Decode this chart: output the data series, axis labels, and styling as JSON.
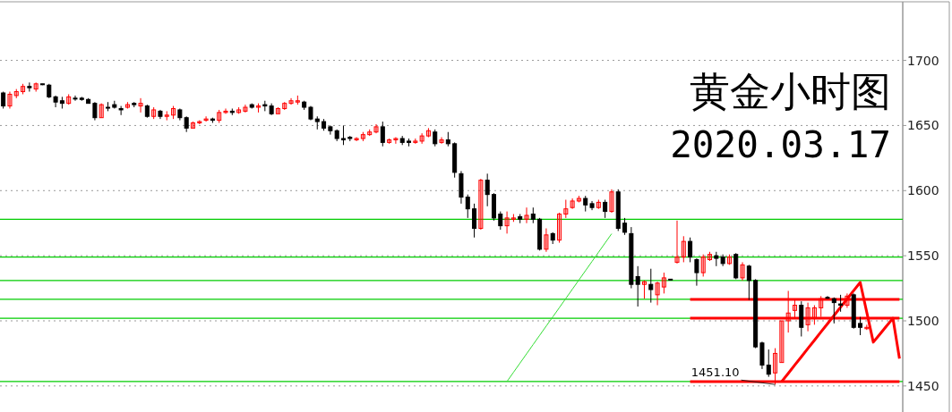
{
  "chart_data": {
    "type": "candlestick",
    "title": "黄金小时图",
    "subtitle": "2020.03.17",
    "categories": [
      null,
      null,
      null,
      null,
      null,
      null,
      null,
      null,
      null,
      null,
      null,
      null,
      null,
      null,
      null,
      null,
      null,
      null,
      null,
      null,
      null,
      null,
      null,
      null,
      null,
      null,
      null,
      null,
      null,
      null,
      null,
      null,
      null,
      null,
      null,
      null,
      null,
      null,
      null,
      null,
      null,
      null,
      null,
      null,
      null,
      null,
      null,
      null,
      null,
      null,
      null,
      null,
      null,
      null,
      null,
      null,
      null,
      null,
      null,
      null,
      null,
      null,
      null,
      null,
      null,
      null,
      null,
      null,
      null,
      null,
      null,
      null,
      null,
      null,
      null,
      null,
      null,
      null,
      null,
      null,
      null,
      null,
      null,
      null,
      null,
      null,
      null,
      null,
      null,
      null,
      null,
      null,
      null,
      null,
      null,
      null,
      null,
      null,
      null,
      null,
      null,
      null,
      null,
      null,
      null,
      null,
      null,
      null,
      null,
      null,
      null,
      null,
      null,
      null,
      null,
      null,
      null,
      null,
      null,
      null,
      null,
      null,
      null,
      null,
      null,
      null,
      null,
      null,
      null,
      null,
      null,
      null,
      null,
      null,
      null,
      null,
      null,
      null
    ],
    "ohlc": [
      [
        1675,
        1676,
        1663,
        1665
      ],
      [
        1665,
        1676,
        1663,
        1674
      ],
      [
        1673,
        1678,
        1671,
        1676
      ],
      [
        1676,
        1682,
        1674,
        1680
      ],
      [
        1680,
        1683,
        1676,
        1679
      ],
      [
        1678,
        1683,
        1676,
        1682
      ],
      [
        1682,
        1682,
        1681,
        1682
      ],
      [
        1681,
        1682,
        1671,
        1672
      ],
      [
        1672,
        1673,
        1664,
        1668
      ],
      [
        1669,
        1672,
        1663,
        1667
      ],
      [
        1667,
        1674,
        1666,
        1672
      ],
      [
        1671,
        1673,
        1669,
        1671
      ],
      [
        1671,
        1672,
        1669,
        1670
      ],
      [
        1670,
        1671,
        1667,
        1667
      ],
      [
        1667,
        1668,
        1654,
        1656
      ],
      [
        1656,
        1667,
        1656,
        1666
      ],
      [
        1664,
        1668,
        1661,
        1664
      ],
      [
        1666,
        1669,
        1663,
        1664
      ],
      [
        1663,
        1665,
        1658,
        1662
      ],
      [
        1664,
        1668,
        1663,
        1666
      ],
      [
        1667,
        1668,
        1664,
        1666
      ],
      [
        1665,
        1671,
        1660,
        1667
      ],
      [
        1665,
        1666,
        1656,
        1657
      ],
      [
        1657,
        1664,
        1655,
        1662
      ],
      [
        1661,
        1662,
        1655,
        1657
      ],
      [
        1657,
        1661,
        1654,
        1658
      ],
      [
        1658,
        1665,
        1655,
        1663
      ],
      [
        1662,
        1663,
        1654,
        1656
      ],
      [
        1656,
        1657,
        1645,
        1648
      ],
      [
        1648,
        1653,
        1648,
        1652
      ],
      [
        1652,
        1654,
        1651,
        1653
      ],
      [
        1654,
        1657,
        1653,
        1655
      ],
      [
        1655,
        1656,
        1652,
        1654
      ],
      [
        1654,
        1662,
        1652,
        1660
      ],
      [
        1660,
        1663,
        1659,
        1661
      ],
      [
        1661,
        1663,
        1658,
        1660
      ],
      [
        1660,
        1664,
        1659,
        1662
      ],
      [
        1661,
        1666,
        1660,
        1664
      ],
      [
        1666,
        1667,
        1663,
        1664
      ],
      [
        1664,
        1667,
        1660,
        1665
      ],
      [
        1666,
        1669,
        1661,
        1665
      ],
      [
        1665,
        1667,
        1658,
        1659
      ],
      [
        1659,
        1664,
        1659,
        1663
      ],
      [
        1663,
        1668,
        1662,
        1667
      ],
      [
        1667,
        1671,
        1666,
        1669
      ],
      [
        1668,
        1673,
        1666,
        1669
      ],
      [
        1668,
        1669,
        1662,
        1664
      ],
      [
        1664,
        1665,
        1654,
        1655
      ],
      [
        1655,
        1657,
        1647,
        1653
      ],
      [
        1653,
        1655,
        1646,
        1648
      ],
      [
        1649,
        1650,
        1643,
        1646
      ],
      [
        1646,
        1647,
        1638,
        1640
      ],
      [
        1640,
        1650,
        1635,
        1639
      ],
      [
        1641,
        1642,
        1638,
        1640
      ],
      [
        1639,
        1641,
        1638,
        1640
      ],
      [
        1640,
        1645,
        1638,
        1643
      ],
      [
        1643,
        1647,
        1642,
        1645
      ],
      [
        1645,
        1651,
        1644,
        1649
      ],
      [
        1649,
        1653,
        1634,
        1637
      ],
      [
        1637,
        1640,
        1636,
        1639
      ],
      [
        1639,
        1641,
        1636,
        1640
      ],
      [
        1640,
        1642,
        1635,
        1637
      ],
      [
        1638,
        1640,
        1634,
        1637
      ],
      [
        1637,
        1640,
        1636,
        1638
      ],
      [
        1638,
        1644,
        1636,
        1642
      ],
      [
        1642,
        1648,
        1641,
        1646
      ],
      [
        1645,
        1647,
        1634,
        1636
      ],
      [
        1637,
        1641,
        1636,
        1639
      ],
      [
        1639,
        1645,
        1634,
        1636
      ],
      [
        1636,
        1637,
        1610,
        1614
      ],
      [
        1613,
        1615,
        1590,
        1595
      ],
      [
        1595,
        1597,
        1579,
        1586
      ],
      [
        1586,
        1590,
        1564,
        1571
      ],
      [
        1571,
        1609,
        1570,
        1608
      ],
      [
        1608,
        1613,
        1588,
        1597
      ],
      [
        1597,
        1598,
        1577,
        1579
      ],
      [
        1582,
        1584,
        1570,
        1573
      ],
      [
        1573,
        1584,
        1567,
        1579
      ],
      [
        1578,
        1582,
        1576,
        1579
      ],
      [
        1580,
        1582,
        1575,
        1578
      ],
      [
        1578,
        1587,
        1575,
        1581
      ],
      [
        1582,
        1587,
        1575,
        1578
      ],
      [
        1578,
        1579,
        1554,
        1555
      ],
      [
        1555,
        1571,
        1553,
        1566
      ],
      [
        1567,
        1568,
        1559,
        1562
      ],
      [
        1562,
        1583,
        1560,
        1582
      ],
      [
        1582,
        1593,
        1579,
        1586
      ],
      [
        1587,
        1594,
        1586,
        1592
      ],
      [
        1592,
        1596,
        1591,
        1594
      ],
      [
        1594,
        1596,
        1584,
        1589
      ],
      [
        1590,
        1592,
        1585,
        1587
      ],
      [
        1587,
        1593,
        1586,
        1591
      ],
      [
        1591,
        1593,
        1579,
        1584
      ],
      [
        1584,
        1601,
        1583,
        1599
      ],
      [
        1599,
        1601,
        1569,
        1571
      ],
      [
        1575,
        1579,
        1566,
        1568
      ],
      [
        1567,
        1572,
        1525,
        1528
      ],
      [
        1534,
        1542,
        1511,
        1528
      ],
      [
        1528,
        1531,
        1517,
        1530
      ],
      [
        1528,
        1540,
        1514,
        1524
      ],
      [
        1520,
        1530,
        1512,
        1529
      ],
      [
        1526,
        1537,
        1521,
        1533
      ],
      [
        1532,
        1532,
        1532,
        1532
      ],
      [
        1545,
        1577,
        1544,
        1549
      ],
      [
        1549,
        1565,
        1545,
        1561
      ],
      [
        1561,
        1564,
        1545,
        1549
      ],
      [
        1547,
        1548,
        1527,
        1537
      ],
      [
        1537,
        1551,
        1534,
        1549
      ],
      [
        1547,
        1553,
        1546,
        1551
      ],
      [
        1550,
        1553,
        1542,
        1548
      ],
      [
        1549,
        1551,
        1542,
        1544
      ],
      [
        1544,
        1551,
        1543,
        1549
      ],
      [
        1551,
        1552,
        1532,
        1533
      ],
      [
        1533,
        1545,
        1531,
        1543
      ],
      [
        1542,
        1543,
        1516,
        1531
      ],
      [
        1531,
        1532,
        1479,
        1480
      ],
      [
        1483,
        1484,
        1463,
        1466
      ],
      [
        1466,
        1478,
        1457,
        1459
      ],
      [
        1460,
        1479,
        1451.1,
        1475
      ],
      [
        1468,
        1500,
        1468,
        1500
      ],
      [
        1500,
        1523,
        1491,
        1506
      ],
      [
        1508,
        1517,
        1502,
        1512
      ],
      [
        1512,
        1515,
        1488,
        1495
      ],
      [
        1497,
        1514,
        1492,
        1510
      ],
      [
        1502,
        1512,
        1497,
        1510
      ],
      [
        1510,
        1519,
        1503,
        1517
      ],
      [
        1518,
        1519,
        1517,
        1518
      ],
      [
        1517,
        1518,
        1498,
        1514
      ],
      [
        1513,
        1520,
        1507,
        1512
      ],
      [
        1512,
        1521,
        1510,
        1519
      ],
      [
        1520,
        1521,
        1494,
        1495
      ],
      [
        1498,
        1503,
        1489,
        1495
      ],
      [
        1494,
        1497,
        1493,
        1495
      ],
      null,
      null,
      null,
      null,
      null
    ],
    "colors": [
      "#000000",
      "#ff0000",
      "#ff0000",
      "#ff0000",
      "#000000",
      "#ff0000",
      "#000000",
      "#000000",
      "#000000",
      "#000000",
      "#ff0000",
      "#000000",
      "#000000",
      "#000000",
      "#000000",
      "#ff0000",
      "#000000",
      "#000000",
      "#000000",
      "#ff0000",
      "#000000",
      "#ff0000",
      "#000000",
      "#ff0000",
      "#000000",
      "#ff0000",
      "#ff0000",
      "#000000",
      "#000000",
      "#ff0000",
      "#ff0000",
      "#ff0000",
      "#000000",
      "#ff0000",
      "#ff0000",
      "#000000",
      "#ff0000",
      "#ff0000",
      "#000000",
      "#ff0000",
      "#000000",
      "#000000",
      "#ff0000",
      "#ff0000",
      "#ff0000",
      "#ff0000",
      "#000000",
      "#000000",
      "#000000",
      "#000000",
      "#000000",
      "#000000",
      "#000000",
      "#000000",
      "#ff0000",
      "#ff0000",
      "#ff0000",
      "#ff0000",
      "#000000",
      "#ff0000",
      "#ff0000",
      "#000000",
      "#000000",
      "#ff0000",
      "#ff0000",
      "#ff0000",
      "#000000",
      "#ff0000",
      "#000000",
      "#000000",
      "#000000",
      "#000000",
      "#000000",
      "#ff0000",
      "#000000",
      "#000000",
      "#000000",
      "#ff0000",
      "#ff0000",
      "#000000",
      "#ff0000",
      "#000000",
      "#000000",
      "#ff0000",
      "#000000",
      "#ff0000",
      "#ff0000",
      "#ff0000",
      "#ff0000",
      "#000000",
      "#000000",
      "#ff0000",
      "#000000",
      "#ff0000",
      "#000000",
      "#000000",
      "#000000",
      "#000000",
      "#ff0000",
      "#000000",
      "#ff0000",
      "#ff0000",
      "#000000",
      "#ff0000",
      "#ff0000",
      "#000000",
      "#000000",
      "#ff0000",
      "#ff0000",
      "#000000",
      "#000000",
      "#ff0000",
      "#000000",
      "#ff0000",
      "#000000",
      "#000000",
      "#000000",
      "#000000",
      "#ff0000",
      "#ff0000",
      "#ff0000",
      "#ff0000",
      "#000000",
      "#ff0000",
      "#ff0000",
      "#ff0000",
      "#000000",
      "#000000",
      "#000000",
      "#ff0000",
      "#000000",
      "#000000",
      "#ff0000",
      null,
      null,
      null,
      null,
      null
    ],
    "series": [
      {
        "type": "line",
        "color": "#ff0000",
        "values": [
          null,
          null,
          null,
          null,
          null,
          null,
          null,
          null,
          null,
          null,
          null,
          null,
          null,
          null,
          null,
          null,
          null,
          null,
          null,
          null,
          null,
          null,
          null,
          null,
          null,
          null,
          null,
          null,
          null,
          null,
          null,
          null,
          null,
          null,
          null,
          null,
          null,
          null,
          null,
          null,
          null,
          null,
          null,
          null,
          null,
          null,
          null,
          null,
          null,
          null,
          null,
          null,
          null,
          null,
          null,
          null,
          null,
          null,
          null,
          null,
          null,
          null,
          null,
          null,
          null,
          null,
          null,
          null,
          null,
          null,
          null,
          null,
          null,
          null,
          null,
          null,
          null,
          null,
          null,
          null,
          null,
          null,
          null,
          null,
          null,
          null,
          null,
          null,
          null,
          null,
          null,
          null,
          null,
          null,
          null,
          null,
          null,
          null,
          null,
          null,
          null,
          null,
          null,
          null,
          null,
          1516.5,
          1516.5,
          1516.5,
          1516.5,
          1516.5,
          1516.5,
          1516.5,
          1516.5,
          1516.5,
          1516.5,
          1516.5,
          1516.5,
          1516.5,
          1516.5,
          1516.5,
          1516.5,
          1516.5,
          1516.5,
          1516.5,
          1516.5,
          1516.5,
          1516.5,
          1516.5,
          1516.5,
          1516.5,
          1516.5,
          1516.5,
          1516.5,
          1516.5,
          1516.5,
          1516.5,
          1516.5,
          1516.5
        ]
      },
      {
        "type": "line",
        "color": "#ff0000",
        "values": [
          null,
          null,
          null,
          null,
          null,
          null,
          null,
          null,
          null,
          null,
          null,
          null,
          null,
          null,
          null,
          null,
          null,
          null,
          null,
          null,
          null,
          null,
          null,
          null,
          null,
          null,
          null,
          null,
          null,
          null,
          null,
          null,
          null,
          null,
          null,
          null,
          null,
          null,
          null,
          null,
          null,
          null,
          null,
          null,
          null,
          null,
          null,
          null,
          null,
          null,
          null,
          null,
          null,
          null,
          null,
          null,
          null,
          null,
          null,
          null,
          null,
          null,
          null,
          null,
          null,
          null,
          null,
          null,
          null,
          null,
          null,
          null,
          null,
          null,
          null,
          null,
          null,
          null,
          null,
          null,
          null,
          null,
          null,
          null,
          null,
          null,
          null,
          null,
          null,
          null,
          null,
          null,
          null,
          null,
          null,
          null,
          null,
          null,
          null,
          null,
          null,
          null,
          null,
          null,
          null,
          1502,
          1502,
          1502,
          1502,
          1502,
          1502,
          1502,
          1502,
          1502,
          1502,
          1502,
          1502,
          1502,
          1502,
          1502,
          1502,
          1502,
          1502,
          1502,
          1502,
          1502,
          1502,
          1502,
          1502,
          1502,
          1502,
          1502,
          1502,
          1502,
          1502,
          1502,
          1502,
          1502
        ]
      },
      {
        "type": "line",
        "color": "#ff0000",
        "values": [
          null,
          null,
          null,
          null,
          null,
          null,
          null,
          null,
          null,
          null,
          null,
          null,
          null,
          null,
          null,
          null,
          null,
          null,
          null,
          null,
          null,
          null,
          null,
          null,
          null,
          null,
          null,
          null,
          null,
          null,
          null,
          null,
          null,
          null,
          null,
          null,
          null,
          null,
          null,
          null,
          null,
          null,
          null,
          null,
          null,
          null,
          null,
          null,
          null,
          null,
          null,
          null,
          null,
          null,
          null,
          null,
          null,
          null,
          null,
          null,
          null,
          null,
          null,
          null,
          null,
          null,
          null,
          null,
          null,
          null,
          null,
          null,
          null,
          null,
          null,
          null,
          null,
          null,
          null,
          null,
          null,
          null,
          null,
          null,
          null,
          null,
          null,
          null,
          null,
          null,
          null,
          null,
          null,
          null,
          null,
          null,
          null,
          null,
          null,
          null,
          null,
          null,
          null,
          null,
          null,
          1453.4,
          1453.4,
          1453.4,
          1453.4,
          1453.4,
          1453.4,
          1453.4,
          1453.4,
          1453.4,
          1453.4,
          1453.4,
          1453.4,
          1453.4,
          1453.4,
          1453.4,
          1453.4,
          1453.4,
          1453.4,
          1453.4,
          1453.4,
          1453.4,
          1453.4,
          1453.4,
          1453.4,
          1453.4,
          1453.4,
          1453.4,
          1453.4,
          1453.4,
          1453.4,
          1453.4,
          1453.4,
          1453.4
        ]
      },
      {
        "type": "line",
        "color": "#ff0000",
        "values": [
          null,
          null,
          null,
          null,
          null,
          null,
          null,
          null,
          null,
          null,
          null,
          null,
          null,
          null,
          null,
          null,
          null,
          null,
          null,
          null,
          null,
          null,
          null,
          null,
          null,
          null,
          null,
          null,
          null,
          null,
          null,
          null,
          null,
          null,
          null,
          null,
          null,
          null,
          null,
          null,
          null,
          null,
          null,
          null,
          null,
          null,
          null,
          null,
          null,
          null,
          null,
          null,
          null,
          null,
          null,
          null,
          null,
          null,
          null,
          null,
          null,
          null,
          null,
          null,
          null,
          null,
          null,
          null,
          null,
          null,
          null,
          null,
          null,
          null,
          null,
          null,
          null,
          null,
          null,
          null,
          null,
          null,
          null,
          null,
          null,
          null,
          null,
          null,
          null,
          null,
          null,
          null,
          null,
          null,
          null,
          null,
          null,
          null,
          null,
          null,
          null,
          null,
          null,
          null,
          null,
          null,
          null,
          null,
          null,
          null,
          null,
          null,
          null,
          null,
          null,
          null,
          null,
          null,
          null,
          1453.4,
          1459.7,
          1466.1,
          1472.4,
          1478.8,
          1485.1,
          1491.5,
          1497.8,
          1504.1,
          1510.5,
          1516.8,
          1523.2,
          1529.5,
          1506.6,
          1483.6,
          1489.7,
          1495.9,
          1502,
          1471
        ]
      },
      {
        "type": "line",
        "color": "#33dd33",
        "values": [
          null,
          null,
          null,
          null,
          null,
          null,
          null,
          null,
          null,
          null,
          null,
          null,
          null,
          null,
          null,
          null,
          null,
          null,
          null,
          null,
          null,
          null,
          null,
          null,
          null,
          null,
          null,
          null,
          null,
          null,
          null,
          null,
          null,
          null,
          null,
          null,
          null,
          null,
          null,
          null,
          null,
          null,
          null,
          null,
          null,
          null,
          null,
          null,
          null,
          null,
          null,
          null,
          null,
          null,
          null,
          null,
          null,
          null,
          null,
          null,
          null,
          null,
          null,
          null,
          null,
          null,
          null,
          null,
          null,
          null,
          null,
          null,
          null,
          null,
          null,
          null,
          null,
          1453.4,
          1460.5,
          1467.6,
          1474.7,
          1481.8,
          1488.9,
          1496,
          1503,
          1510.1,
          1517.2,
          1524.3,
          1531.4,
          1538.5,
          1545.6,
          1552.7,
          1559.8,
          1566.9,
          null,
          null,
          null,
          null,
          null,
          null,
          null,
          null,
          null,
          null,
          null,
          null,
          null,
          null,
          null,
          null,
          null,
          null,
          null,
          null,
          null,
          null,
          null,
          null,
          null,
          null,
          null,
          null,
          null,
          null,
          null,
          null,
          null,
          null,
          null,
          null,
          null,
          null,
          null,
          null,
          null,
          null,
          null,
          null
        ]
      }
    ],
    "ref_lines": [
      {
        "axis": "y",
        "value": 1578,
        "color": "#00cc00"
      },
      {
        "axis": "y",
        "value": 1549,
        "color": "#00cc00"
      },
      {
        "axis": "y",
        "value": 1531,
        "color": "#00cc00"
      },
      {
        "axis": "y",
        "value": 1516.5,
        "color": "#00cc00"
      },
      {
        "axis": "y",
        "value": 1502,
        "color": "#00cc00"
      },
      {
        "axis": "y",
        "value": 1453.4,
        "color": "#00cc00"
      }
    ],
    "annotations": [
      {
        "text": "1451.10",
        "y": 1451.1
      }
    ],
    "ylim": [
      1430,
      1745
    ],
    "yticks": [
      1450,
      1500,
      1550,
      1600,
      1650,
      1700
    ],
    "grid": "y",
    "tick_labels": "y"
  }
}
